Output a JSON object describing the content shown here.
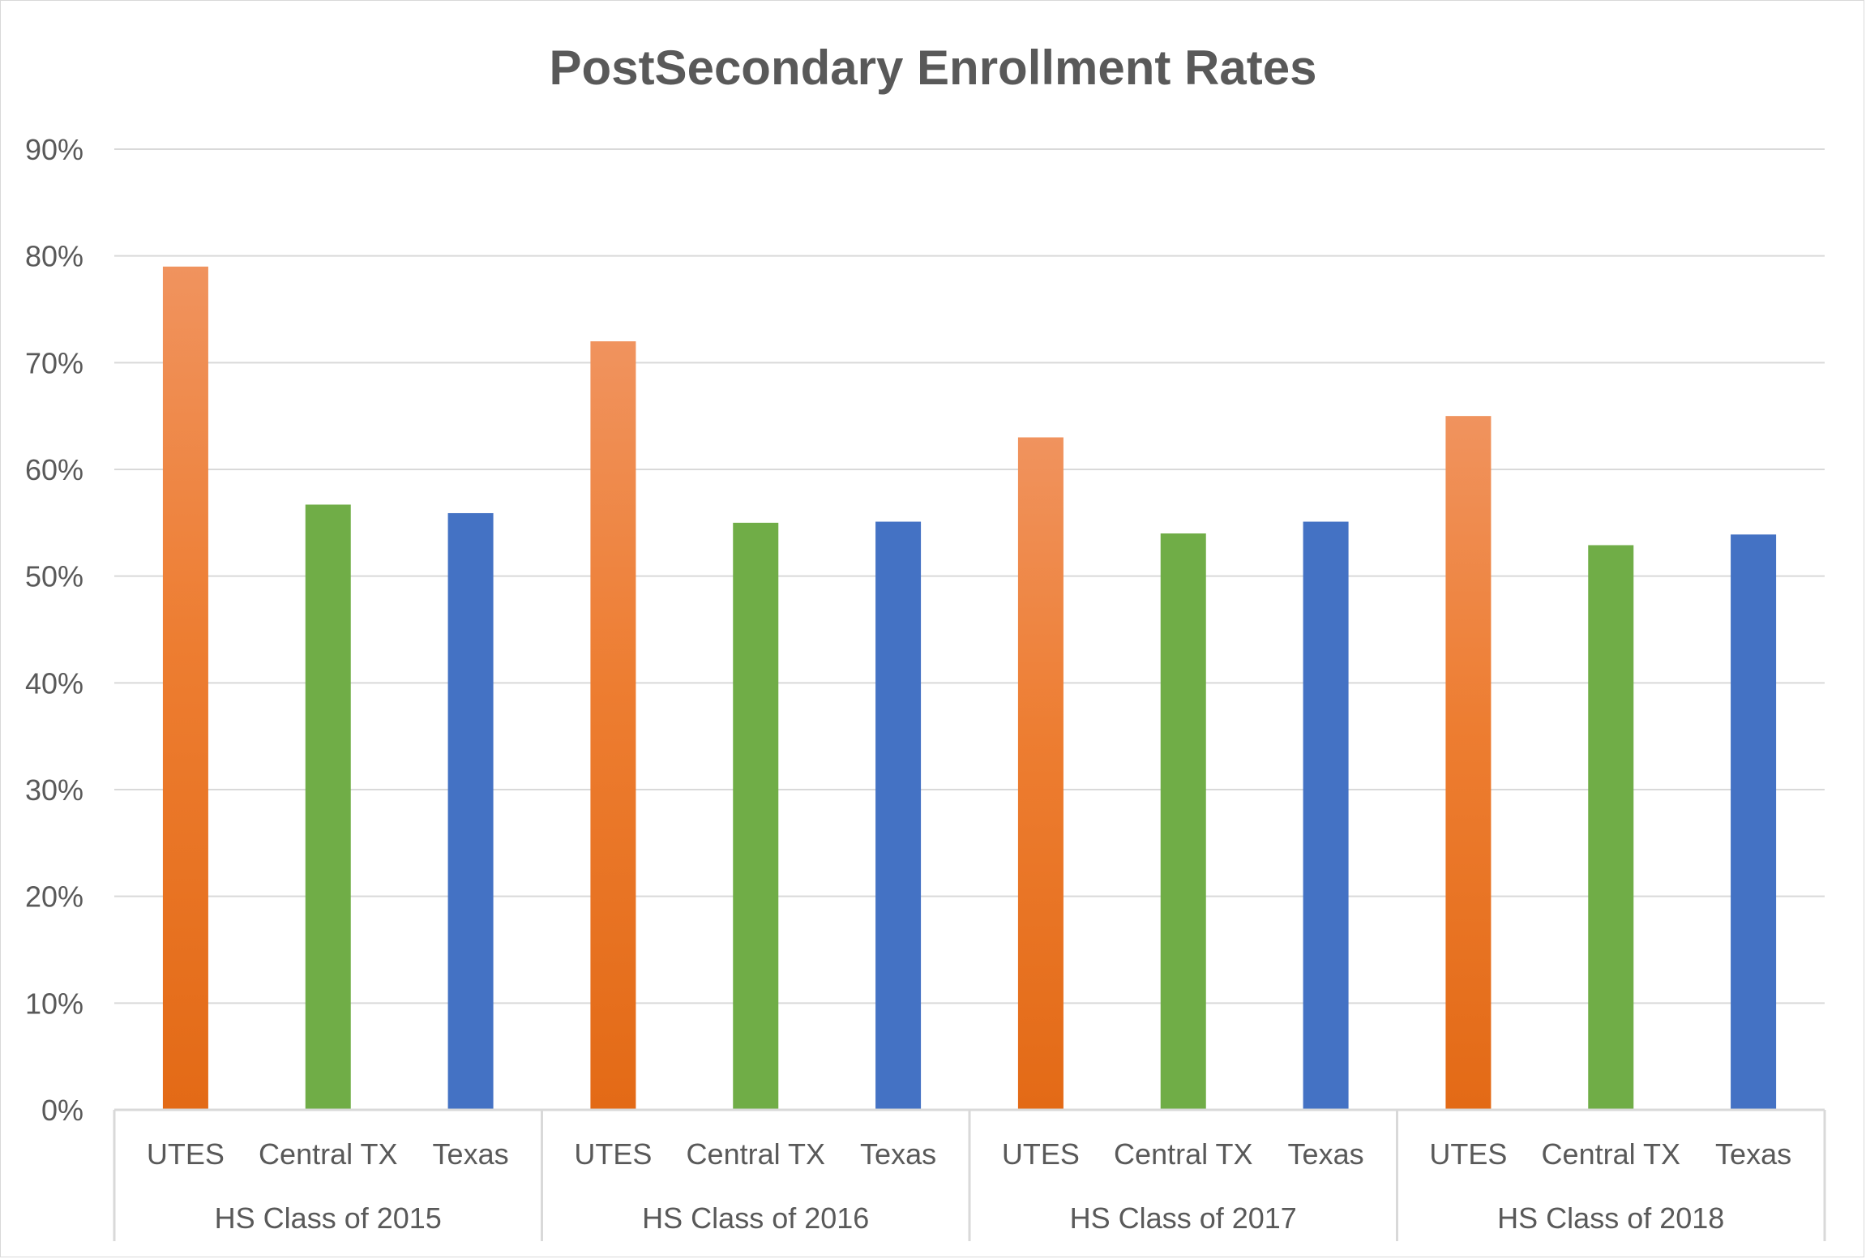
{
  "chart_data": {
    "type": "bar",
    "title": "PostSecondary Enrollment Rates",
    "xlabel": "",
    "ylabel": "",
    "ylim": [
      0,
      0.9
    ],
    "y_ticks": [
      0,
      0.1,
      0.2,
      0.3,
      0.4,
      0.5,
      0.6,
      0.7,
      0.8,
      0.9
    ],
    "y_tick_labels": [
      "0%",
      "10%",
      "20%",
      "30%",
      "40%",
      "50%",
      "60%",
      "70%",
      "80%",
      "90%"
    ],
    "grid": true,
    "legend": "none",
    "groups": [
      {
        "label": "HS Class of 2015",
        "bars": [
          {
            "label": "UTES",
            "value": 0.79
          },
          {
            "label": "Central TX",
            "value": 0.567
          },
          {
            "label": "Texas",
            "value": 0.559
          }
        ]
      },
      {
        "label": "HS Class of 2016",
        "bars": [
          {
            "label": "UTES",
            "value": 0.72
          },
          {
            "label": "Central TX",
            "value": 0.55
          },
          {
            "label": "Texas",
            "value": 0.551
          }
        ]
      },
      {
        "label": "HS Class of 2017",
        "bars": [
          {
            "label": "UTES",
            "value": 0.63
          },
          {
            "label": "Central TX",
            "value": 0.54
          },
          {
            "label": "Texas",
            "value": 0.551
          }
        ]
      },
      {
        "label": "HS Class of 2018",
        "bars": [
          {
            "label": "UTES",
            "value": 0.65
          },
          {
            "label": "Central TX",
            "value": 0.529
          },
          {
            "label": "Texas",
            "value": 0.539
          }
        ]
      }
    ],
    "colors": {
      "UTES": "#ED7D31",
      "UTES_light": "#F0935E",
      "UTES_dark": "#E36A16",
      "Central TX": "#70AD47",
      "Texas": "#4472C4",
      "grid": "#D9D9D9",
      "text": "#595959"
    }
  }
}
